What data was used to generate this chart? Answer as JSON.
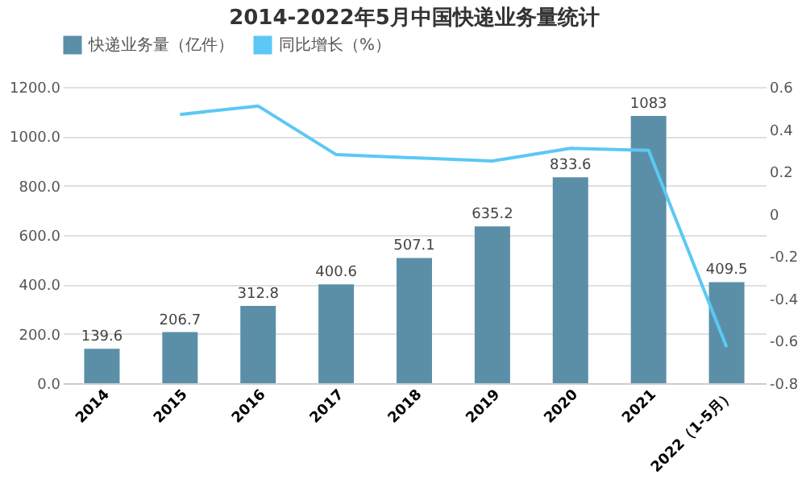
{
  "chart_data": {
    "type": "bar",
    "title": "2014-2022年5月中国快递业务量统计",
    "categories": [
      "2014",
      "2015",
      "2016",
      "2017",
      "2018",
      "2019",
      "2020",
      "2021",
      "2022（1-5月）"
    ],
    "series": [
      {
        "name": "快递业务量（亿件）",
        "color": "#5b8fa8",
        "values": [
          139.6,
          206.7,
          312.8,
          400.6,
          507.1,
          635.2,
          833.6,
          1083,
          409.5
        ],
        "value_labels": [
          "139.6",
          "206.7",
          "312.8",
          "400.6",
          "507.1",
          "635.2",
          "833.6",
          "1083",
          "409.5"
        ]
      },
      {
        "name": "同比增长（%）",
        "type": "line",
        "axis": "y2",
        "color": "#5bc8f5",
        "values": [
          null,
          0.47,
          0.51,
          0.28,
          0.265,
          0.25,
          0.31,
          0.3,
          -0.63
        ]
      }
    ],
    "ylim": [
      0,
      1200
    ],
    "yticks": [
      {
        "value": 0,
        "label": "0.0"
      },
      {
        "value": 200,
        "label": "200.0"
      },
      {
        "value": 400,
        "label": "400.0"
      },
      {
        "value": 600,
        "label": "600.0"
      },
      {
        "value": 800,
        "label": "800.0"
      },
      {
        "value": 1000,
        "label": "1000.0"
      },
      {
        "value": 1200,
        "label": "1200.0"
      }
    ],
    "y2lim": [
      -0.8,
      0.6
    ],
    "y2ticks": [
      -0.8,
      -0.6,
      -0.4,
      -0.2,
      0,
      0.2,
      0.4,
      0.6
    ],
    "grid": "y",
    "legend": "top",
    "marker": "none",
    "line_style": "solid"
  }
}
